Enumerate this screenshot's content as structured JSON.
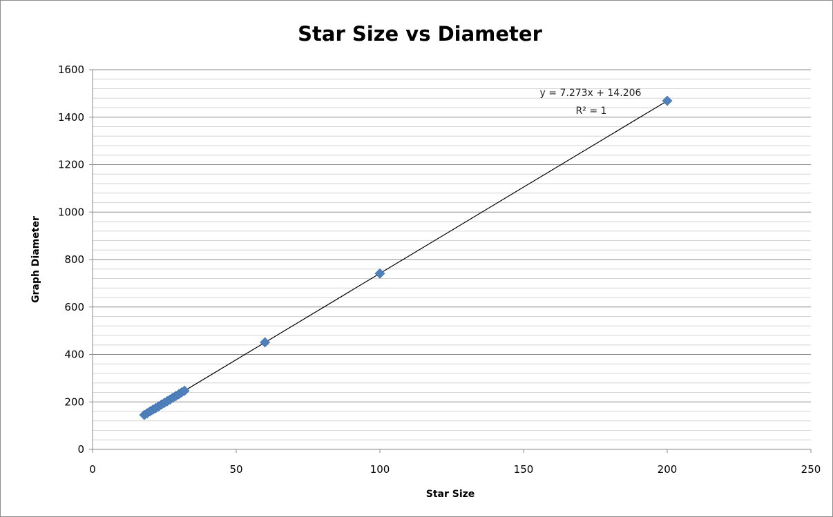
{
  "chart_data": {
    "type": "scatter",
    "title": "Star Size vs Diameter",
    "xlabel": "Star Size",
    "ylabel": "Graph Diameter",
    "xlim": [
      0,
      250
    ],
    "ylim": [
      0,
      1600
    ],
    "xticks": [
      "0",
      "50",
      "100",
      "150",
      "200",
      "250"
    ],
    "yticks": [
      "0",
      "200",
      "400",
      "600",
      "800",
      "1000",
      "1200",
      "1400",
      "1600"
    ],
    "grid": true,
    "legend": "none",
    "marker": "diamond",
    "marker_color": "#4F81BD",
    "series": [
      {
        "x": [
          18,
          19,
          20,
          21,
          22,
          23,
          24,
          25,
          26,
          27,
          28,
          29,
          30,
          31,
          32,
          60,
          100,
          200
        ],
        "y": [
          145,
          152,
          160,
          167,
          174,
          181,
          189,
          196,
          203,
          210,
          218,
          225,
          232,
          240,
          247,
          451,
          741,
          1469
        ]
      }
    ],
    "trendline": {
      "type": "linear",
      "slope": 7.273,
      "intercept": 14.206,
      "x_range": [
        18,
        200
      ],
      "equation": "y = 7.273x + 14.206",
      "r_squared": "R² = 1"
    }
  }
}
